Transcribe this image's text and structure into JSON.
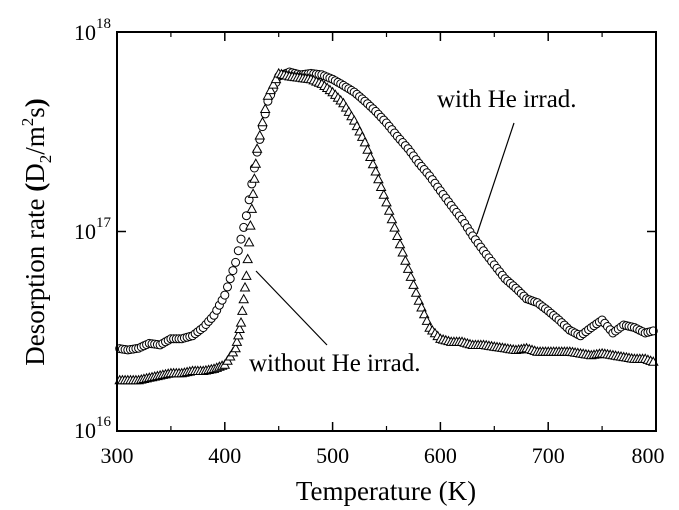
{
  "chart_data": {
    "type": "scatter",
    "xlabel": "Temperature  (K)",
    "ylabel": {
      "prefix": "Desorption rate ",
      "bold_open": "(",
      "d": "D",
      "d_sub": "2",
      "slash_m": "/m",
      "m_sup": "2",
      "s": "s",
      "bold_close": ")"
    },
    "xlim": [
      300,
      800
    ],
    "ylim": [
      1e+16,
      1e+18
    ],
    "yscale": "log",
    "grid": false,
    "x_ticks": [
      "300",
      "400",
      "500",
      "600",
      "700",
      "800"
    ],
    "y_ticks": [
      {
        "base": "10",
        "exp": "16"
      },
      {
        "base": "10",
        "exp": "17"
      },
      {
        "base": "10",
        "exp": "18"
      }
    ],
    "series": [
      {
        "name": "with He irrad.",
        "marker": "circle",
        "points": [
          [
            300,
            2.6e+16
          ],
          [
            310,
            2.55e+16
          ],
          [
            320,
            2.6e+16
          ],
          [
            330,
            2.75e+16
          ],
          [
            340,
            2.7e+16
          ],
          [
            350,
            2.9e+16
          ],
          [
            360,
            2.9e+16
          ],
          [
            370,
            3e+16
          ],
          [
            380,
            3.3e+16
          ],
          [
            390,
            3.8e+16
          ],
          [
            400,
            4.8e+16
          ],
          [
            410,
            7e+16
          ],
          [
            420,
            1.2e+17
          ],
          [
            430,
            2.5e+17
          ],
          [
            440,
            4.5e+17
          ],
          [
            450,
            6e+17
          ],
          [
            460,
            6.3e+17
          ],
          [
            470,
            6.1e+17
          ],
          [
            480,
            6.2e+17
          ],
          [
            490,
            6.1e+17
          ],
          [
            500,
            5.8e+17
          ],
          [
            510,
            5.4e+17
          ],
          [
            520,
            5e+17
          ],
          [
            530,
            4.5e+17
          ],
          [
            540,
            4e+17
          ],
          [
            550,
            3.5e+17
          ],
          [
            560,
            3e+17
          ],
          [
            570,
            2.6e+17
          ],
          [
            580,
            2.2e+17
          ],
          [
            590,
            1.9e+17
          ],
          [
            600,
            1.6e+17
          ],
          [
            610,
            1.35e+17
          ],
          [
            620,
            1.15e+17
          ],
          [
            630,
            9.5e+16
          ],
          [
            640,
            8e+16
          ],
          [
            650,
            6.8e+16
          ],
          [
            660,
            5.8e+16
          ],
          [
            670,
            5.2e+16
          ],
          [
            680,
            4.6e+16
          ],
          [
            690,
            4.4e+16
          ],
          [
            700,
            4e+16
          ],
          [
            710,
            3.6e+16
          ],
          [
            720,
            3.2e+16
          ],
          [
            730,
            3e+16
          ],
          [
            740,
            3.3e+16
          ],
          [
            750,
            3.6e+16
          ],
          [
            760,
            3.1e+16
          ],
          [
            770,
            3.4e+16
          ],
          [
            780,
            3.3e+16
          ],
          [
            790,
            3.1e+16
          ],
          [
            800,
            3.2e+16
          ]
        ]
      },
      {
        "name": "without He irrad.",
        "marker": "triangle",
        "points": [
          [
            300,
            1.8e+16
          ],
          [
            310,
            1.8e+16
          ],
          [
            320,
            1.8e+16
          ],
          [
            330,
            1.85e+16
          ],
          [
            340,
            1.9e+16
          ],
          [
            350,
            1.95e+16
          ],
          [
            360,
            1.95e+16
          ],
          [
            370,
            2e+16
          ],
          [
            380,
            2e+16
          ],
          [
            390,
            2.05e+16
          ],
          [
            400,
            2.15e+16
          ],
          [
            410,
            2.6e+16
          ],
          [
            415,
            3.5e+16
          ],
          [
            420,
            6e+16
          ],
          [
            425,
            1.3e+17
          ],
          [
            430,
            2.6e+17
          ],
          [
            440,
            4.8e+17
          ],
          [
            450,
            6.2e+17
          ],
          [
            460,
            6e+17
          ],
          [
            470,
            5.9e+17
          ],
          [
            480,
            5.8e+17
          ],
          [
            490,
            5.5e+17
          ],
          [
            500,
            5e+17
          ],
          [
            510,
            4.4e+17
          ],
          [
            520,
            3.6e+17
          ],
          [
            530,
            2.8e+17
          ],
          [
            540,
            2e+17
          ],
          [
            550,
            1.4e+17
          ],
          [
            560,
            9.5e+16
          ],
          [
            570,
            6.5e+16
          ],
          [
            580,
            4.5e+16
          ],
          [
            590,
            3.3e+16
          ],
          [
            600,
            2.9e+16
          ],
          [
            610,
            2.8e+16
          ],
          [
            620,
            2.8e+16
          ],
          [
            630,
            2.7e+16
          ],
          [
            640,
            2.7e+16
          ],
          [
            650,
            2.65e+16
          ],
          [
            660,
            2.6e+16
          ],
          [
            670,
            2.55e+16
          ],
          [
            680,
            2.6e+16
          ],
          [
            690,
            2.5e+16
          ],
          [
            700,
            2.5e+16
          ],
          [
            710,
            2.5e+16
          ],
          [
            720,
            2.5e+16
          ],
          [
            730,
            2.45e+16
          ],
          [
            740,
            2.4e+16
          ],
          [
            750,
            2.45e+16
          ],
          [
            760,
            2.4e+16
          ],
          [
            770,
            2.35e+16
          ],
          [
            780,
            2.3e+16
          ],
          [
            790,
            2.3e+16
          ],
          [
            800,
            2.2e+16
          ]
        ]
      }
    ],
    "annotations": [
      {
        "text": "with He irrad.",
        "series": "with He irrad."
      },
      {
        "text": "without He irrad.",
        "series": "without He irrad."
      }
    ]
  }
}
